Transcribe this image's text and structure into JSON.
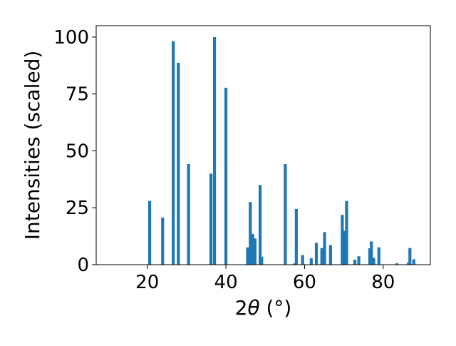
{
  "chart_data": {
    "type": "bar",
    "xlabel_main": "2",
    "xlabel_theta": "θ",
    "xlabel_unit": " (°)",
    "ylabel": "Intensities (scaled)",
    "xlim": [
      7,
      92
    ],
    "ylim": [
      0,
      105
    ],
    "xticks": [
      20,
      40,
      60,
      80
    ],
    "yticks": [
      0,
      25,
      50,
      75,
      100
    ],
    "grid": false,
    "bar_color": "#1f77b4",
    "x": [
      20.6,
      23.9,
      26.6,
      27.9,
      30.5,
      36.2,
      37.1,
      40.0,
      45.5,
      46.2,
      46.8,
      47.4,
      48.7,
      49.1,
      55.1,
      57.4,
      57.9,
      59.5,
      61.7,
      63.0,
      64.4,
      65.1,
      66.6,
      69.6,
      70.1,
      70.7,
      72.8,
      73.8,
      76.6,
      77.0,
      77.6,
      78.9,
      83.5,
      86.4,
      86.8,
      87.8
    ],
    "values": [
      28.0,
      20.7,
      98.2,
      88.7,
      44.2,
      40.0,
      100.0,
      77.7,
      7.6,
      27.5,
      13.5,
      11.5,
      35.0,
      3.5,
      44.2,
      0.5,
      24.5,
      4.2,
      2.8,
      9.6,
      7.3,
      14.3,
      8.6,
      21.9,
      14.9,
      28.0,
      2.2,
      3.7,
      7.2,
      10.2,
      3.0,
      7.6,
      0.6,
      1.0,
      7.3,
      2.4
    ]
  }
}
